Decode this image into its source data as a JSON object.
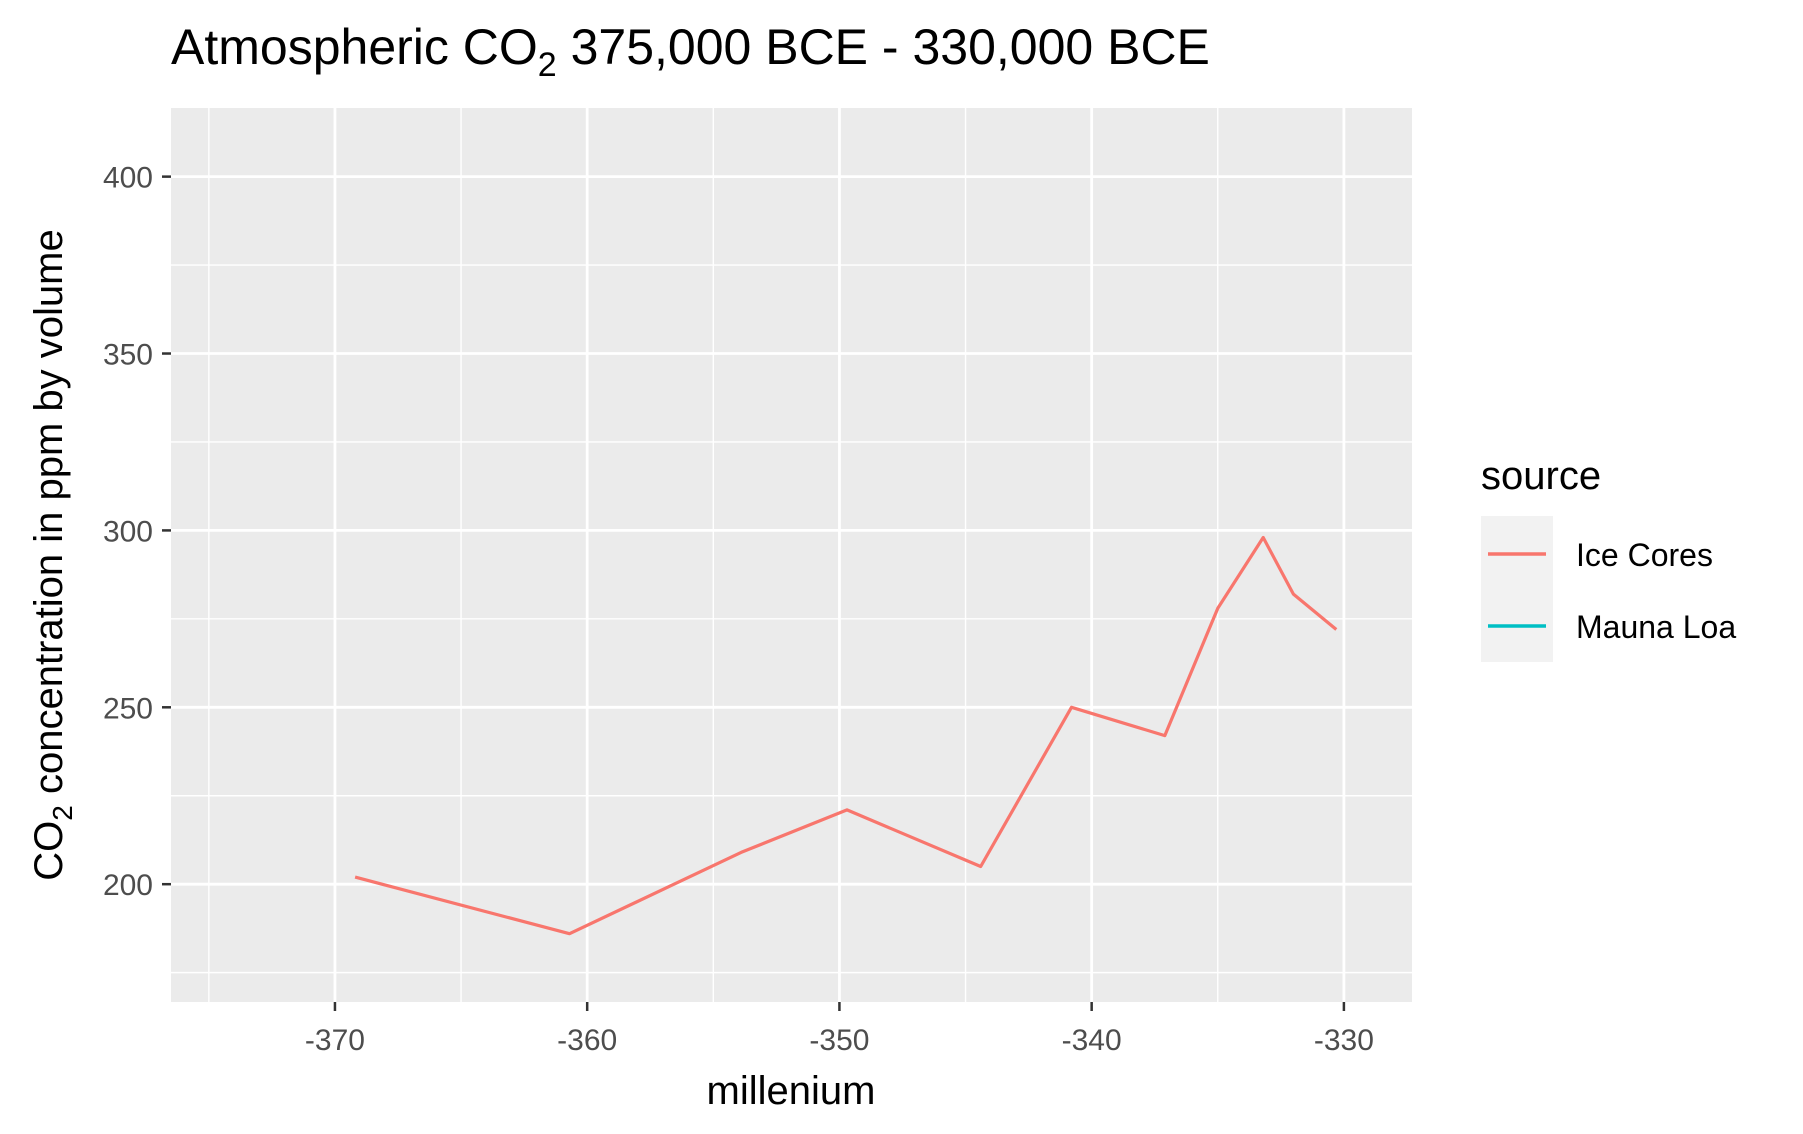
{
  "chart_data": {
    "type": "line",
    "title": {
      "prefix": "Atmospheric CO",
      "subscript": "2",
      "suffix": " 375,000 BCE - 330,000 BCE"
    },
    "xlabel": "millenium",
    "ylabel": {
      "prefix": "CO",
      "subscript": "2",
      "suffix": " concentration in ppm by volume"
    },
    "xlim": [
      -376.5,
      -327.3
    ],
    "ylim": [
      166.7,
      419.4
    ],
    "x_ticks": [
      -370,
      -360,
      -350,
      -340,
      -330
    ],
    "y_ticks": [
      200,
      250,
      300,
      350,
      400
    ],
    "x_tick_labels": [
      "-370",
      "-360",
      "-350",
      "-340",
      "-330"
    ],
    "y_tick_labels": [
      "200",
      "250",
      "300",
      "350",
      "400"
    ],
    "background_color": "#EBEBEB",
    "grid": true,
    "legend": {
      "title": "source",
      "position": "right",
      "entries": [
        "Ice Cores",
        "Mauna Loa"
      ]
    },
    "series": [
      {
        "name": "Ice Cores",
        "color": "#F8766D",
        "x": [
          -369.2,
          -360.7,
          -353.9,
          -349.7,
          -344.4,
          -340.8,
          -337.1,
          -335.0,
          -333.2,
          -332.0,
          -330.3
        ],
        "y": [
          202,
          186,
          209,
          221,
          205,
          250,
          242,
          278,
          298,
          282,
          272
        ]
      },
      {
        "name": "Mauna Loa",
        "color": "#00BFC4",
        "x": [],
        "y": []
      }
    ]
  }
}
